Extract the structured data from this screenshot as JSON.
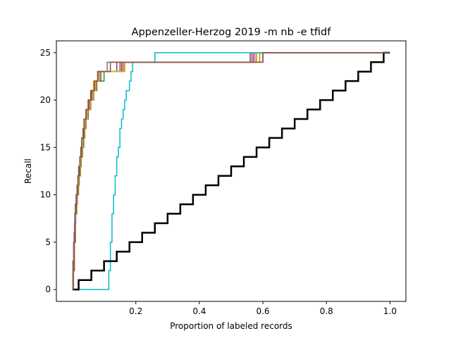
{
  "chart_data": {
    "type": "line",
    "title": "Appenzeller-Herzog 2019 -m nb -e tfidf",
    "xlabel": "Proportion of labeled records",
    "ylabel": "Recall",
    "xlim": [
      -0.05,
      1.05
    ],
    "ylim": [
      -1.25,
      26.25
    ],
    "xticks": [
      0.2,
      0.4,
      0.6,
      0.8,
      1.0
    ],
    "xtick_labels": [
      "0.2",
      "0.4",
      "0.6",
      "0.8",
      "1.0"
    ],
    "yticks": [
      0,
      5,
      10,
      15,
      20,
      25
    ],
    "ytick_labels": [
      "0",
      "5",
      "10",
      "15",
      "20",
      "25"
    ],
    "grid": false,
    "legend": false,
    "series": [
      {
        "color": "#1f77b4",
        "x": [
          0.0,
          0.003,
          0.005,
          0.008,
          0.012,
          0.016,
          0.02,
          0.025,
          0.03,
          0.036,
          0.042,
          0.05,
          0.057,
          0.065,
          0.072,
          0.08,
          0.09,
          0.1,
          0.13,
          0.16,
          0.6,
          1.0
        ],
        "y": [
          0,
          2,
          5,
          8,
          10,
          11,
          12,
          14,
          15,
          17,
          18,
          19,
          20,
          21,
          22,
          23,
          23,
          23,
          23,
          24,
          25,
          25
        ]
      },
      {
        "color": "#ff7f0e",
        "x": [
          0.0,
          0.004,
          0.007,
          0.01,
          0.014,
          0.02,
          0.026,
          0.032,
          0.038,
          0.045,
          0.052,
          0.06,
          0.067,
          0.075,
          0.083,
          0.1,
          0.165,
          0.59,
          1.0
        ],
        "y": [
          0,
          2,
          5,
          8,
          10,
          12,
          14,
          16,
          18,
          19,
          20,
          21,
          22,
          22,
          23,
          23,
          24,
          25,
          25
        ]
      },
      {
        "color": "#2ca02c",
        "x": [
          0.0,
          0.002,
          0.006,
          0.01,
          0.015,
          0.02,
          0.027,
          0.034,
          0.041,
          0.049,
          0.058,
          0.067,
          0.077,
          0.088,
          0.1,
          0.16,
          0.58,
          1.0
        ],
        "y": [
          0,
          3,
          6,
          9,
          11,
          13,
          15,
          17,
          18,
          19,
          20,
          21,
          22,
          22,
          23,
          24,
          25,
          25
        ]
      },
      {
        "color": "#d62728",
        "x": [
          0.0,
          0.003,
          0.006,
          0.01,
          0.013,
          0.018,
          0.024,
          0.03,
          0.036,
          0.043,
          0.05,
          0.058,
          0.066,
          0.075,
          0.085,
          0.1,
          0.155,
          0.57,
          1.0
        ],
        "y": [
          0,
          2,
          5,
          8,
          10,
          12,
          14,
          16,
          17,
          19,
          20,
          21,
          21,
          22,
          23,
          23,
          24,
          25,
          25
        ]
      },
      {
        "color": "#9467bd",
        "x": [
          0.0,
          0.002,
          0.004,
          0.007,
          0.011,
          0.016,
          0.022,
          0.028,
          0.034,
          0.041,
          0.048,
          0.056,
          0.064,
          0.073,
          0.082,
          0.1,
          0.15,
          0.565,
          1.0
        ],
        "y": [
          0,
          2,
          5,
          7,
          9,
          11,
          13,
          15,
          17,
          18,
          19,
          20,
          21,
          22,
          23,
          23,
          24,
          25,
          25
        ]
      },
      {
        "color": "#8c564b",
        "x": [
          0.0,
          0.003,
          0.006,
          0.01,
          0.015,
          0.021,
          0.027,
          0.034,
          0.042,
          0.05,
          0.058,
          0.067,
          0.077,
          0.09,
          0.1,
          0.14,
          0.56,
          1.0
        ],
        "y": [
          0,
          3,
          6,
          9,
          11,
          13,
          15,
          17,
          18,
          19,
          20,
          21,
          22,
          23,
          23,
          24,
          25,
          25
        ]
      },
      {
        "color": "#e377c2",
        "x": [
          0.0,
          0.003,
          0.006,
          0.01,
          0.014,
          0.019,
          0.025,
          0.031,
          0.038,
          0.046,
          0.054,
          0.063,
          0.072,
          0.082,
          0.1,
          0.158,
          0.575,
          1.0
        ],
        "y": [
          0,
          2,
          5,
          8,
          10,
          12,
          14,
          16,
          18,
          19,
          20,
          21,
          22,
          23,
          23,
          24,
          25,
          25
        ]
      },
      {
        "color": "#7f7f7f",
        "x": [
          0.0,
          0.002,
          0.005,
          0.009,
          0.013,
          0.018,
          0.024,
          0.03,
          0.037,
          0.045,
          0.053,
          0.062,
          0.072,
          0.082,
          0.1,
          0.11,
          0.16,
          0.56,
          1.0
        ],
        "y": [
          0,
          2,
          5,
          8,
          10,
          12,
          14,
          16,
          18,
          19,
          20,
          21,
          22,
          23,
          23,
          24,
          24,
          25,
          25
        ]
      },
      {
        "color": "#bcbd22",
        "x": [
          0.0,
          0.003,
          0.006,
          0.01,
          0.014,
          0.02,
          0.026,
          0.033,
          0.04,
          0.048,
          0.056,
          0.065,
          0.074,
          0.084,
          0.1,
          0.162,
          0.58,
          1.0
        ],
        "y": [
          0,
          2,
          5,
          8,
          10,
          12,
          14,
          16,
          18,
          19,
          20,
          21,
          22,
          23,
          23,
          24,
          25,
          25
        ]
      },
      {
        "color": "#17becf",
        "x": [
          0.0,
          0.11,
          0.115,
          0.12,
          0.125,
          0.13,
          0.135,
          0.14,
          0.145,
          0.15,
          0.155,
          0.16,
          0.165,
          0.17,
          0.175,
          0.18,
          0.185,
          0.19,
          0.2,
          0.26,
          0.6,
          1.0
        ],
        "y": [
          0,
          0,
          2,
          5,
          8,
          10,
          12,
          14,
          15,
          17,
          18,
          19,
          20,
          21,
          21,
          22,
          23,
          24,
          24,
          25,
          25,
          25
        ]
      },
      {
        "color": "#000000",
        "x": [
          0.0,
          0.02,
          0.06,
          0.1,
          0.14,
          0.18,
          0.22,
          0.26,
          0.3,
          0.34,
          0.38,
          0.42,
          0.46,
          0.5,
          0.54,
          0.58,
          0.62,
          0.66,
          0.7,
          0.74,
          0.78,
          0.82,
          0.86,
          0.9,
          0.94,
          0.98,
          1.0
        ],
        "y": [
          0,
          1,
          2,
          3,
          4,
          5,
          6,
          7,
          8,
          9,
          10,
          11,
          12,
          13,
          14,
          15,
          16,
          17,
          18,
          19,
          20,
          21,
          22,
          23,
          24,
          25,
          25
        ],
        "bold": true
      },
      {
        "color": "#8c564b",
        "x": [
          0.0,
          0.003,
          0.006,
          0.009,
          0.013,
          0.018,
          0.024,
          0.03,
          0.037,
          0.044,
          0.052,
          0.06,
          0.07,
          0.08,
          0.1,
          0.12,
          0.6,
          1.0
        ],
        "y": [
          0,
          2,
          5,
          8,
          10,
          12,
          14,
          16,
          18,
          19,
          20,
          21,
          22,
          23,
          23,
          24,
          25,
          25
        ]
      }
    ]
  }
}
